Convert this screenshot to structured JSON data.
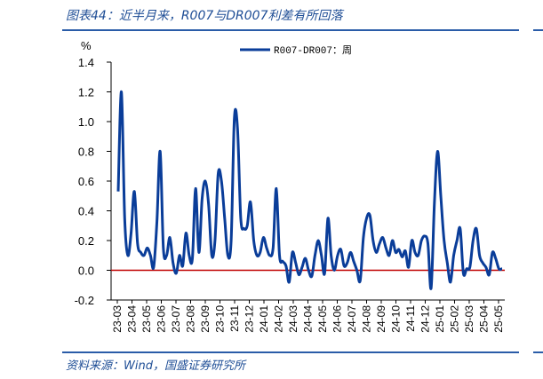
{
  "header": {
    "title": "图表44：近半月来，R007与DR007利差有所回落"
  },
  "footer": {
    "source": "资料来源：Wind，国盛证券研究所"
  },
  "colors": {
    "series": "#0a3d99",
    "zero_line": "#c00000",
    "rules": "#2a5ca8",
    "text": "#1f4e96"
  },
  "chart_data": {
    "type": "line",
    "title": "图表44：近半月来，R007与DR007利差有所回落",
    "ylabel": "%",
    "ylim": [
      -0.2,
      1.4
    ],
    "yticks": [
      "1.4",
      "1.2",
      "1.0",
      "0.8",
      "0.6",
      "0.4",
      "0.2",
      "0.0",
      "-0.2"
    ],
    "ytick_values": [
      1.4,
      1.2,
      1.0,
      0.8,
      0.6,
      0.4,
      0.2,
      0.0,
      -0.2
    ],
    "xticks": [
      "23-03",
      "23-04",
      "23-05",
      "23-06",
      "23-07",
      "23-08",
      "23-09",
      "23-10",
      "23-11",
      "23-12",
      "24-01",
      "24-02",
      "24-03",
      "24-04",
      "24-05",
      "24-06",
      "24-07",
      "24-08",
      "24-09",
      "24-10",
      "24-11",
      "24-12",
      "25-01",
      "25-02",
      "25-03",
      "25-04",
      "25-05"
    ],
    "legend": [
      "R007-DR007：周"
    ],
    "legend_position": "top",
    "reference_line": 0.0,
    "series": [
      {
        "name": "R007-DR007：周",
        "values": [
          0.53,
          1.2,
          0.35,
          0.1,
          0.25,
          0.53,
          0.18,
          0.12,
          0.1,
          0.15,
          0.1,
          0.02,
          0.33,
          0.8,
          0.15,
          0.1,
          0.22,
          0.05,
          -0.02,
          0.1,
          0.03,
          0.25,
          0.1,
          0.08,
          0.55,
          0.12,
          0.48,
          0.6,
          0.45,
          0.1,
          0.2,
          0.65,
          0.6,
          0.35,
          0.1,
          0.2,
          1.02,
          0.95,
          0.35,
          0.28,
          0.3,
          0.46,
          0.2,
          0.1,
          0.12,
          0.22,
          0.15,
          0.1,
          0.15,
          0.55,
          0.1,
          0.06,
          0.03,
          -0.08,
          0.12,
          0.05,
          -0.03,
          0.02,
          0.08,
          0.0,
          -0.04,
          0.1,
          0.2,
          0.1,
          -0.02,
          0.35,
          0.1,
          0.0,
          0.1,
          0.14,
          0.03,
          0.05,
          0.12,
          0.06,
          0.0,
          -0.07,
          0.22,
          0.35,
          0.37,
          0.2,
          0.12,
          0.18,
          0.22,
          0.15,
          0.1,
          0.2,
          0.12,
          0.14,
          0.09,
          0.13,
          0.02,
          0.2,
          0.12,
          0.1,
          0.2,
          0.23,
          0.18,
          -0.12,
          0.45,
          0.8,
          0.5,
          0.2,
          0.05,
          -0.08,
          0.1,
          0.2,
          0.28,
          -0.02,
          0.01,
          0.02,
          0.2,
          0.28,
          0.1,
          0.05,
          0.02,
          -0.03,
          0.12,
          0.08,
          0.01,
          0.01
        ]
      }
    ]
  }
}
